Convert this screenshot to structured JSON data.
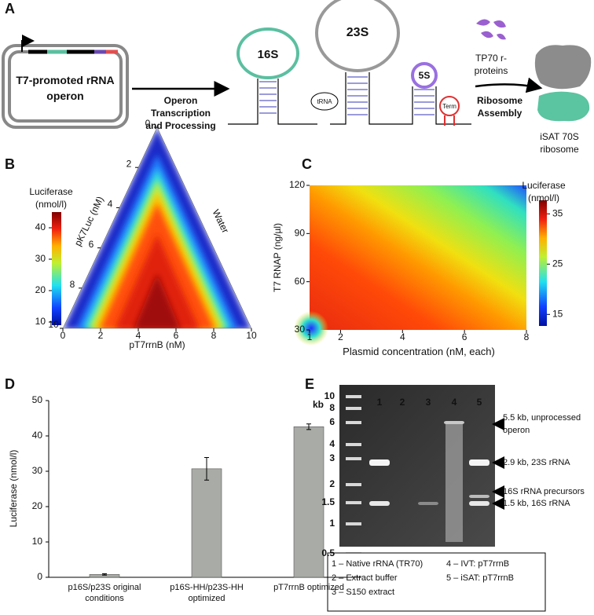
{
  "panels": {
    "a": "A",
    "b": "B",
    "c": "C",
    "d": "D",
    "e": "E"
  },
  "schematic": {
    "plasmid_label": "T7-promoted rRNA operon",
    "step1": "Operon Transcription and Processing",
    "rrna": [
      "16S",
      "23S",
      "5S"
    ],
    "trna": "tRNA",
    "term": "Term",
    "proteins": "TP70 r-proteins",
    "step2": "Ribosome Assembly",
    "product": "iSAT 70S ribosome"
  },
  "chart_data": [
    {
      "type": "ternary",
      "colorbar_title": "Luciferase (nmol/l)",
      "colorbar_lim": [
        9,
        45
      ],
      "colorbar_ticks": [
        10,
        20,
        30,
        40
      ],
      "left_label": "pK7Luc (nM)",
      "right_label": "Water",
      "bottom_label": "pT7rrnB (nM)",
      "lim": [
        0,
        10
      ],
      "ticks": [
        0,
        2,
        4,
        6,
        8,
        10
      ]
    },
    {
      "type": "heatmap",
      "xlabel": "Plasmid concentration (nM, each)",
      "ylabel": "T7 RNAP (ng/µl)",
      "xlim": [
        1,
        8
      ],
      "xticks": [
        1,
        2,
        4,
        6,
        8
      ],
      "ylim": [
        30,
        120
      ],
      "yticks": [
        30,
        60,
        90,
        120
      ],
      "colorbar_title": "Luciferase (nmol/l)",
      "colorbar_lim": [
        12.7,
        37.7
      ],
      "colorbar_ticks": [
        15,
        25,
        35
      ]
    },
    {
      "type": "bar",
      "ylabel": "Luciferase (nmol/l)",
      "categories": [
        "p16S/p23S original conditions",
        "p16S-HH/p23S-HH optimized",
        "pT7rrnB optimized"
      ],
      "values": [
        0.8,
        30.7,
        42.6
      ],
      "errors": [
        0.2,
        3.2,
        0.8
      ],
      "color": "#a9aba7",
      "ylim": [
        0,
        50
      ],
      "yticks": [
        0,
        10,
        20,
        30,
        40,
        50
      ]
    }
  ],
  "gel": {
    "unit": "kb",
    "ladder": [
      "10",
      "8",
      "6",
      "4",
      "3",
      "2",
      "1.5",
      "1",
      "0.5"
    ],
    "lanes": [
      "1",
      "2",
      "3",
      "4",
      "5"
    ],
    "annotations": [
      "5.5 kb, unprocessed operon",
      "2.9 kb, 23S rRNA",
      "16S rRNA precursors",
      "1.5 kb, 16S rRNA"
    ],
    "legend": [
      "1 – Native rRNA (TR70)",
      "2 – Extract buffer",
      "3 – S150 extract",
      "4 – IVT: pT7rrnB",
      "5 – iSAT: pT7rrnB"
    ]
  }
}
